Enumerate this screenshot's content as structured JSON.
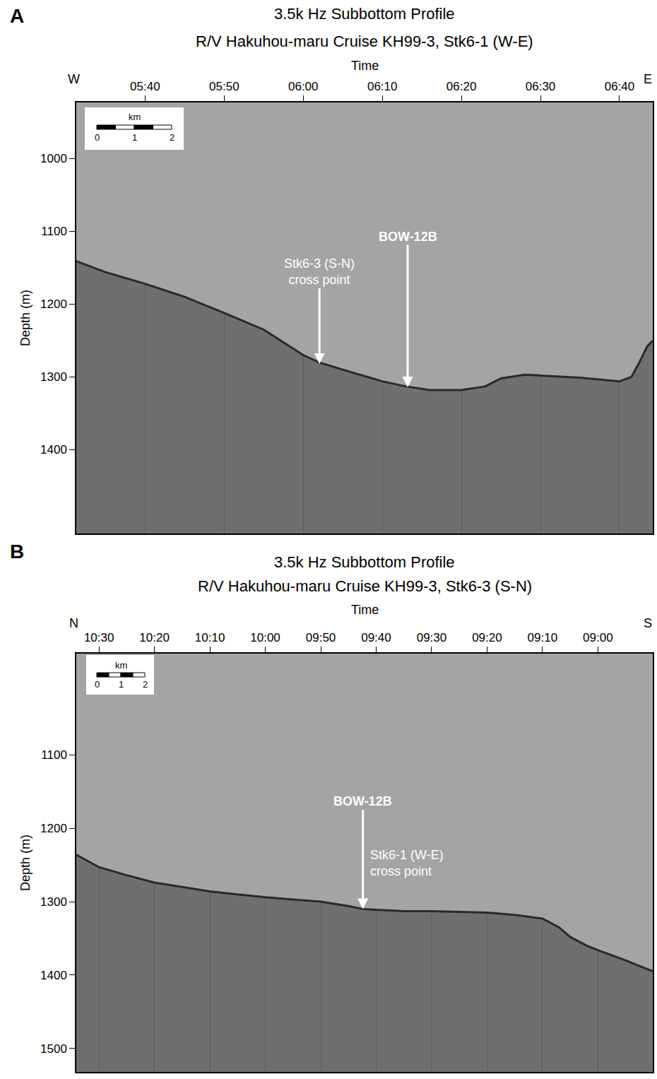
{
  "chart_data": [
    {
      "type": "line",
      "panel": "A",
      "title": "3.5k Hz Subbottom Profile",
      "subtitle": "R/V Hakuhou-maru Cruise KH99-3, Stk6-1 (W-E)",
      "x_label": "Time",
      "y_label": "Depth (m)",
      "x_ends": [
        "W",
        "E"
      ],
      "color": "#2a2a2a",
      "x": [
        331.3,
        335,
        340,
        345,
        350,
        355,
        360,
        362,
        365,
        370,
        373,
        376,
        380,
        383,
        385,
        388,
        390,
        395,
        400,
        401.5,
        402.5,
        403.5,
        404.2
      ],
      "values": [
        1141,
        1156,
        1172,
        1190,
        1212,
        1235,
        1270,
        1280,
        1290,
        1306,
        1313,
        1318,
        1318,
        1313,
        1302,
        1297,
        1298,
        1301,
        1306,
        1300,
        1280,
        1258,
        1250
      ],
      "xlim": [
        331.3,
        404.2
      ],
      "ylim": [
        1515,
        923
      ],
      "xticks": [
        {
          "value": 340,
          "label": "05:40"
        },
        {
          "value": 350,
          "label": "05:50"
        },
        {
          "value": 360,
          "label": "06:00"
        },
        {
          "value": 370,
          "label": "06:10"
        },
        {
          "value": 380,
          "label": "06:20"
        },
        {
          "value": 390,
          "label": "06:30"
        },
        {
          "value": 400,
          "label": "06:40"
        }
      ],
      "yticks": [
        1000,
        1100,
        1200,
        1300,
        1400
      ],
      "grid": true,
      "annotations": [
        {
          "lines": [
            "Stk6-3 (S-N)",
            "cross point"
          ],
          "x": 362.05,
          "y": 1282
        },
        {
          "lines": [
            "BOW-12B"
          ],
          "x": 373.2,
          "y": 1314
        }
      ],
      "scale_bar": {
        "label": "km",
        "ticks": [
          0,
          1,
          2
        ]
      }
    },
    {
      "type": "line",
      "panel": "B",
      "title": "3.5k Hz Subbottom Profile",
      "subtitle": "R/V Hakuhou-maru Cruise KH99-3, Stk6-3 (S-N)",
      "x_label": "Time",
      "y_label": "Depth (m)",
      "x_ends": [
        "N",
        "S"
      ],
      "color": "#2a2a2a",
      "x": [
        634.1,
        630,
        625,
        620,
        615,
        610,
        605,
        600,
        595,
        590,
        585,
        582.4,
        580,
        575,
        570,
        565,
        560,
        555,
        550,
        547,
        545,
        542,
        540,
        535,
        530.1
      ],
      "values": [
        1236,
        1253,
        1264,
        1274,
        1280,
        1286,
        1290,
        1294,
        1297,
        1300,
        1306,
        1310,
        1311,
        1313,
        1313,
        1314,
        1315,
        1318,
        1323,
        1335,
        1348,
        1360,
        1366,
        1380,
        1395
      ],
      "xlim": [
        634.1,
        530.1
      ],
      "ylim": [
        1532,
        962
      ],
      "xticks": [
        {
          "value": 630,
          "label": "10:30"
        },
        {
          "value": 620,
          "label": "10:20"
        },
        {
          "value": 610,
          "label": "10:10"
        },
        {
          "value": 600,
          "label": "10:00"
        },
        {
          "value": 590,
          "label": "09:50"
        },
        {
          "value": 580,
          "label": "09:40"
        },
        {
          "value": 570,
          "label": "09:30"
        },
        {
          "value": 560,
          "label": "09:20"
        },
        {
          "value": 550,
          "label": "09:10"
        },
        {
          "value": 540,
          "label": "09:00"
        }
      ],
      "yticks": [
        1100,
        1200,
        1300,
        1400,
        1500
      ],
      "grid": true,
      "annotations": [
        {
          "lines": [
            "BOW-12B"
          ],
          "x": 582.4,
          "y": 1310
        },
        {
          "lines": [
            "Stk6-1 (W-E)",
            "cross point"
          ],
          "x": 582.4,
          "y": 1310
        }
      ],
      "scale_bar": {
        "label": "km",
        "ticks": [
          0,
          1,
          2
        ]
      }
    }
  ]
}
